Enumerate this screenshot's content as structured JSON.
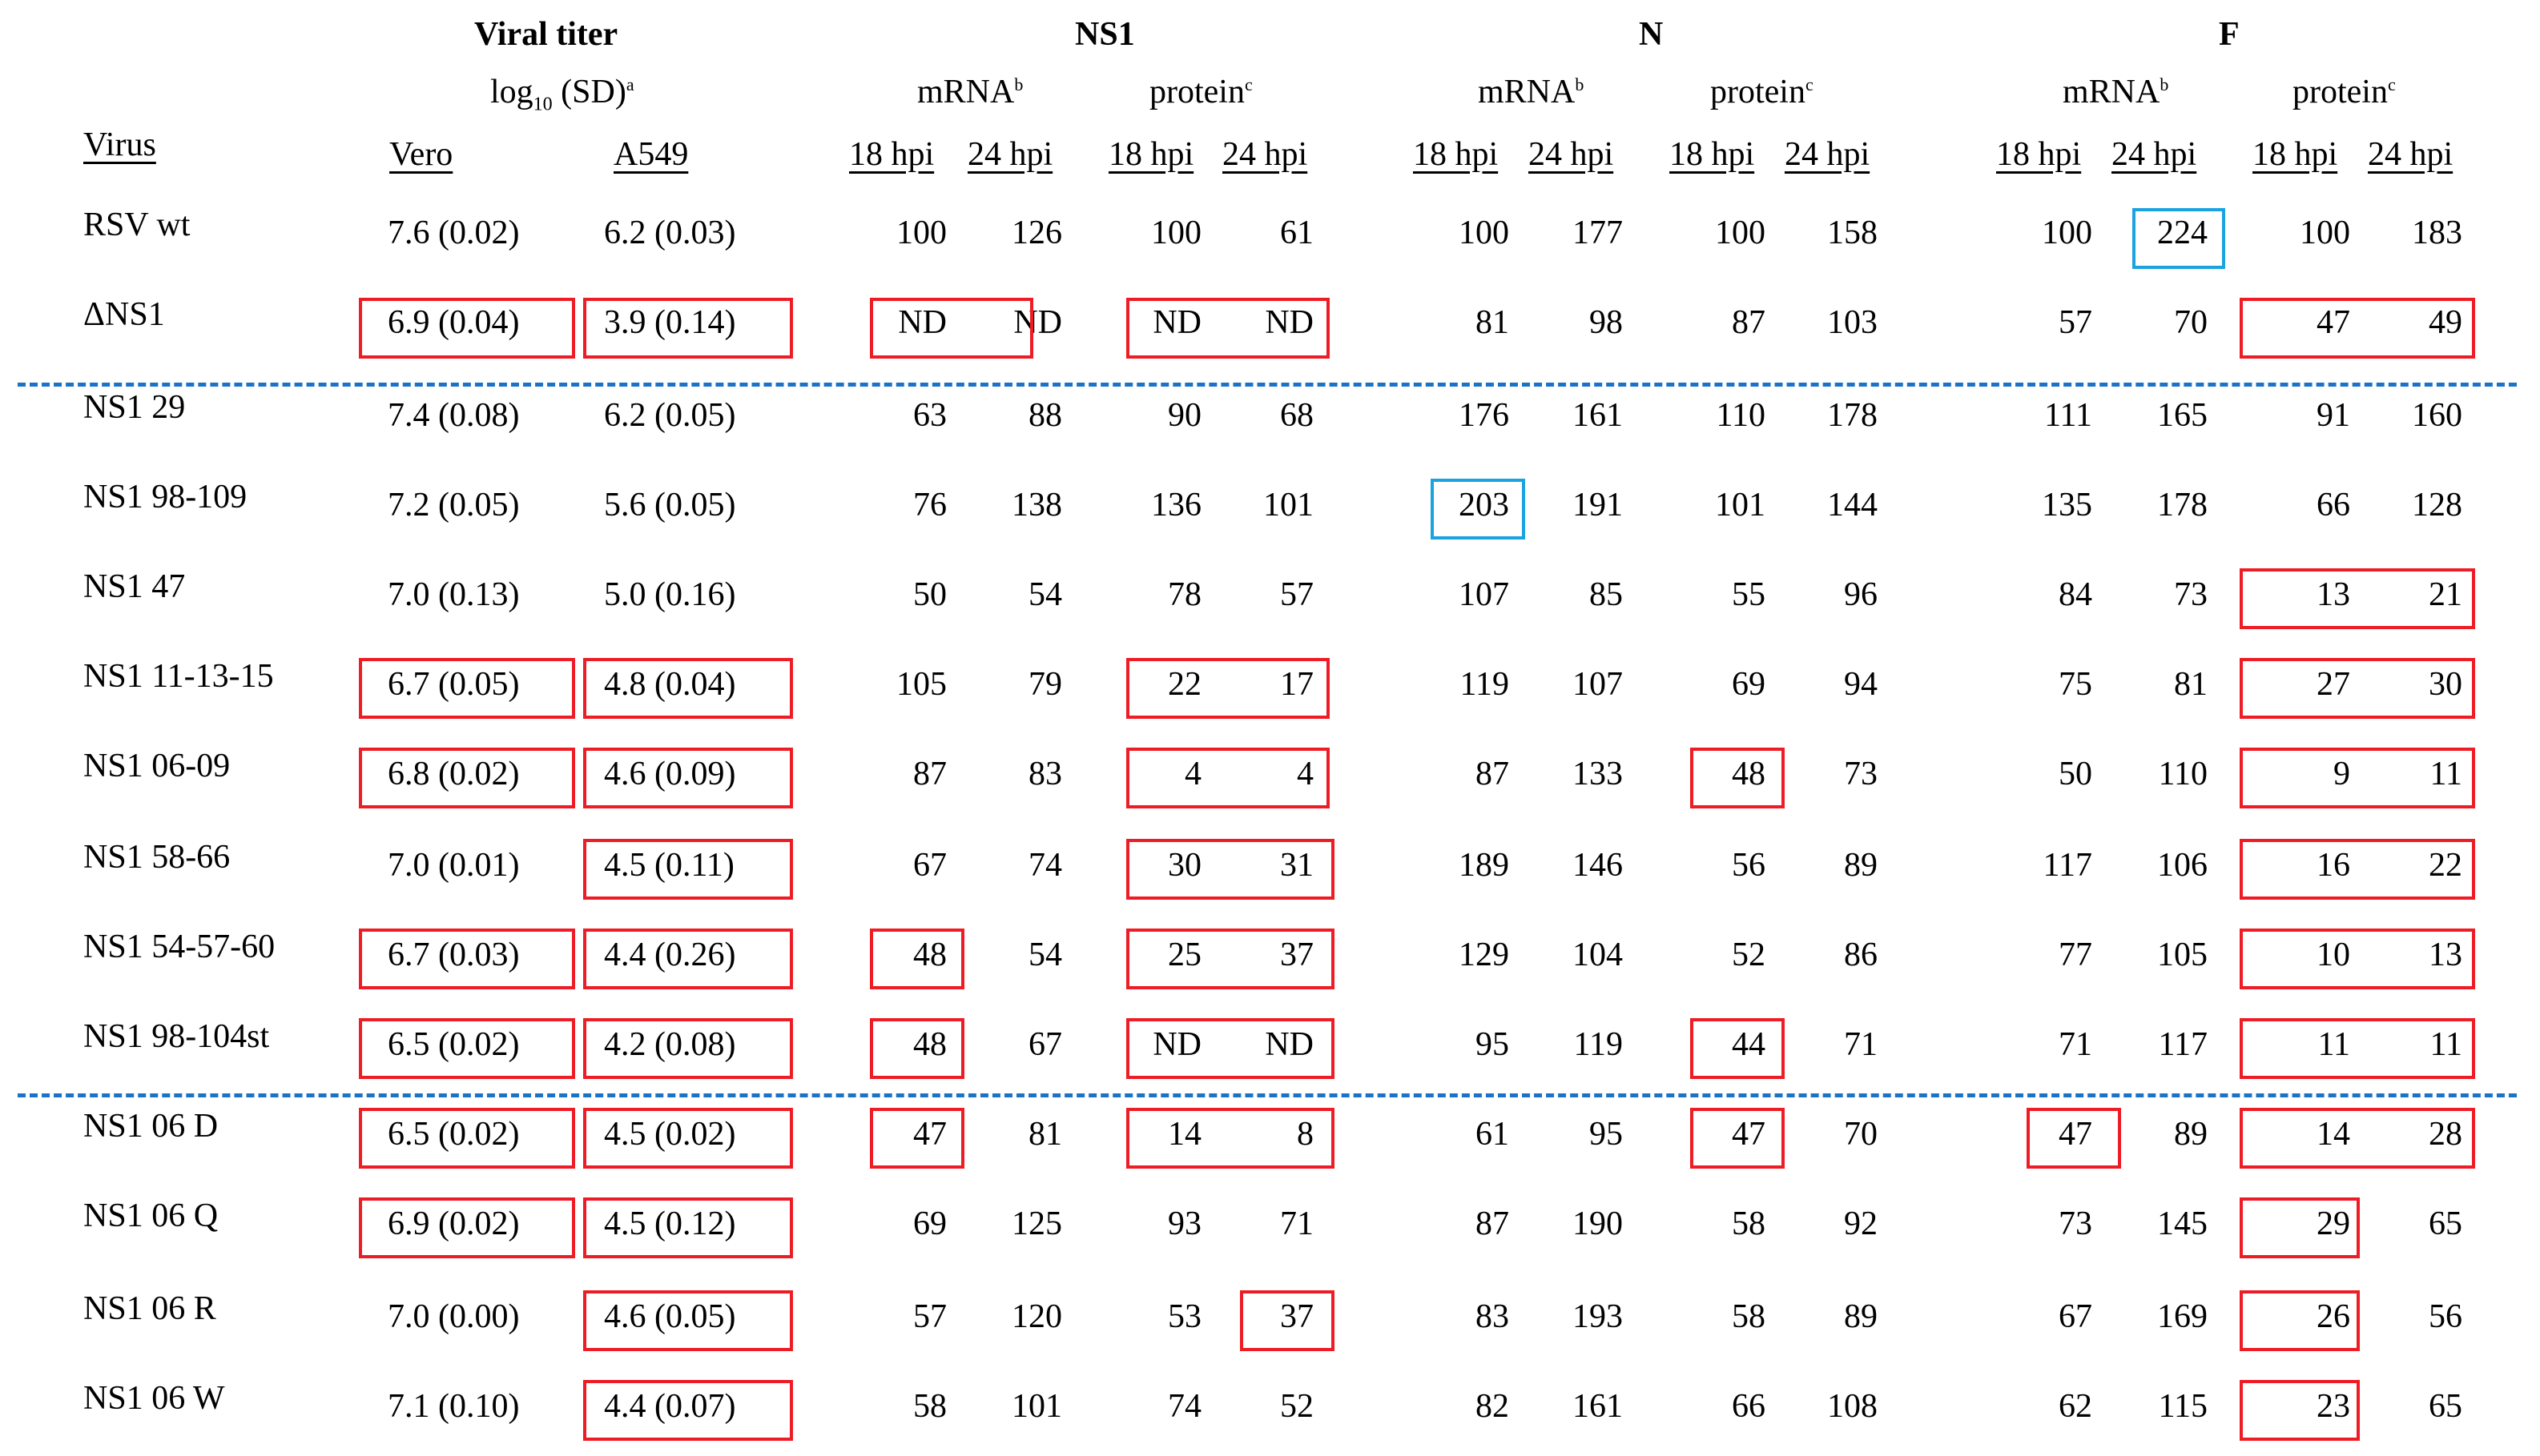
{
  "header": {
    "viral_titer": "Viral titer",
    "log_base": "log",
    "log_sub": "10",
    "log_rest": " (SD)",
    "log_sup": "a",
    "ns1": "NS1",
    "n": "N",
    "f": "F",
    "mrna": "mRNA",
    "mrna_sup": "b",
    "protein": "protein",
    "protein_sup": "c"
  },
  "columns": {
    "virus": "Virus",
    "vero": "Vero",
    "a549": "A549",
    "hpi18": "18 hpi",
    "hpi24": "24 hpi"
  },
  "rows": [
    {
      "virus": "RSV wt",
      "vero": "7.6 (0.02)",
      "a549": "6.2 (0.03)",
      "values": [
        "100",
        "126",
        "100",
        "61",
        "100",
        "177",
        "100",
        "158",
        "100",
        "224",
        "100",
        "183"
      ]
    },
    {
      "virus": "ΔNS1",
      "vero": "6.9 (0.04)",
      "a549": "3.9 (0.14)",
      "values": [
        "ND",
        "ND",
        "ND",
        "ND",
        "81",
        "98",
        "87",
        "103",
        "57",
        "70",
        "47",
        "49"
      ]
    },
    {
      "virus": "NS1 29",
      "vero": "7.4 (0.08)",
      "a549": "6.2 (0.05)",
      "values": [
        "63",
        "88",
        "90",
        "68",
        "176",
        "161",
        "110",
        "178",
        "111",
        "165",
        "91",
        "160"
      ]
    },
    {
      "virus": "NS1 98-109",
      "vero": "7.2 (0.05)",
      "a549": "5.6 (0.05)",
      "values": [
        "76",
        "138",
        "136",
        "101",
        "203",
        "191",
        "101",
        "144",
        "135",
        "178",
        "66",
        "128"
      ]
    },
    {
      "virus": "NS1 47",
      "vero": "7.0 (0.13)",
      "a549": "5.0 (0.16)",
      "values": [
        "50",
        "54",
        "78",
        "57",
        "107",
        "85",
        "55",
        "96",
        "84",
        "73",
        "13",
        "21"
      ]
    },
    {
      "virus": "NS1 11-13-15",
      "vero": "6.7 (0.05)",
      "a549": "4.8 (0.04)",
      "values": [
        "105",
        "79",
        "22",
        "17",
        "119",
        "107",
        "69",
        "94",
        "75",
        "81",
        "27",
        "30"
      ]
    },
    {
      "virus": "NS1 06-09",
      "vero": "6.8 (0.02)",
      "a549": "4.6 (0.09)",
      "values": [
        "87",
        "83",
        "4",
        "4",
        "87",
        "133",
        "48",
        "73",
        "50",
        "110",
        "9",
        "11"
      ]
    },
    {
      "virus": "NS1 58-66",
      "vero": "7.0 (0.01)",
      "a549": "4.5 (0.11)",
      "values": [
        "67",
        "74",
        "30",
        "31",
        "189",
        "146",
        "56",
        "89",
        "117",
        "106",
        "16",
        "22"
      ]
    },
    {
      "virus": "NS1 54-57-60",
      "vero": "6.7 (0.03)",
      "a549": "4.4 (0.26)",
      "values": [
        "48",
        "54",
        "25",
        "37",
        "129",
        "104",
        "52",
        "86",
        "77",
        "105",
        "10",
        "13"
      ]
    },
    {
      "virus": "NS1 98-104st",
      "vero": "6.5 (0.02)",
      "a549": "4.2 (0.08)",
      "values": [
        "48",
        "67",
        "ND",
        "ND",
        "95",
        "119",
        "44",
        "71",
        "71",
        "117",
        "11",
        "11"
      ]
    },
    {
      "virus": "NS1 06 D",
      "vero": "6.5 (0.02)",
      "a549": "4.5 (0.02)",
      "values": [
        "47",
        "81",
        "14",
        "8",
        "61",
        "95",
        "47",
        "70",
        "47",
        "89",
        "14",
        "28"
      ]
    },
    {
      "virus": "NS1 06 Q",
      "vero": "6.9 (0.02)",
      "a549": "4.5 (0.12)",
      "values": [
        "69",
        "125",
        "93",
        "71",
        "87",
        "190",
        "58",
        "92",
        "73",
        "145",
        "29",
        "65"
      ]
    },
    {
      "virus": "NS1 06 R",
      "vero": "7.0 (0.00)",
      "a549": "4.6 (0.05)",
      "values": [
        "57",
        "120",
        "53",
        "37",
        "83",
        "193",
        "58",
        "89",
        "67",
        "169",
        "26",
        "56"
      ]
    },
    {
      "virus": "NS1 06 W",
      "vero": "7.1 (0.10)",
      "a549": "4.4 (0.07)",
      "values": [
        "58",
        "101",
        "74",
        "52",
        "82",
        "161",
        "66",
        "108",
        "62",
        "115",
        "23",
        "65"
      ]
    }
  ]
}
